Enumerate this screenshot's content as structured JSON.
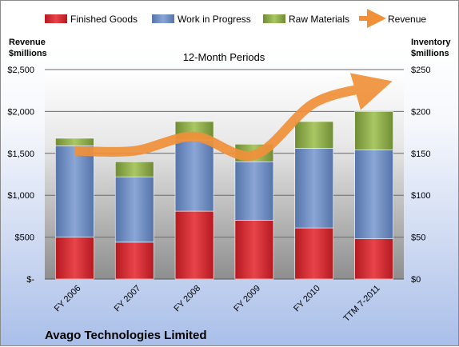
{
  "chart_data": {
    "type": "bar",
    "stacked": true,
    "title": "Avago Technologies Limited",
    "subtitle": "12-Month Periods",
    "left_axis_label": "Revenue\n$millions",
    "right_axis_label": "Inventory\n$millions",
    "categories": [
      "FY 2006",
      "FY 2007",
      "FY 2008",
      "FY 2009",
      "FY 2010",
      "TTM 7-2011"
    ],
    "series": [
      {
        "name": "Finished Goods",
        "color": "#d9272e",
        "axis": "right",
        "values": [
          50,
          44,
          81,
          70,
          61,
          48
        ]
      },
      {
        "name": "Work in Progress",
        "color": "#6b8cc4",
        "axis": "right",
        "values": [
          109,
          78,
          85,
          70,
          95,
          106
        ]
      },
      {
        "name": "Raw Materials",
        "color": "#8fb04a",
        "axis": "right",
        "values": [
          9,
          18,
          22,
          21,
          32,
          46
        ]
      },
      {
        "name": "Revenue",
        "color": "#f0913a",
        "axis": "left",
        "type": "line",
        "values": [
          1530,
          1530,
          1700,
          1480,
          2100,
          2300
        ]
      }
    ],
    "left_axis": {
      "min": 0,
      "max": 2500,
      "ticks": [
        "$-",
        "$500",
        "$1,000",
        "$1,500",
        "$2,000",
        "$2,500"
      ]
    },
    "right_axis": {
      "min": 0,
      "max": 250,
      "ticks": [
        "$0",
        "$50",
        "$100",
        "$150",
        "$200",
        "$250"
      ]
    },
    "grid": true,
    "legend_position": "top"
  }
}
